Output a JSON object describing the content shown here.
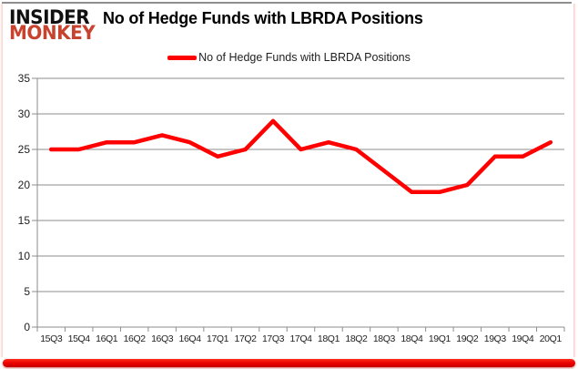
{
  "logo": {
    "line1": "INSIDER",
    "line2": "MONKEY"
  },
  "title": "No of Hedge Funds with LBRDA Positions",
  "legend": {
    "label": "No of Hedge Funds with LBRDA Positions",
    "color": "#ff0000"
  },
  "colors": {
    "line": "#ff0000",
    "grid": "#8e8e8e",
    "text": "#1f1f1f",
    "logo_red": "#c8432e",
    "bottom_bar": "#e80000",
    "side_border": "#f6cfc9"
  },
  "chart_data": {
    "type": "line",
    "title": "No of Hedge Funds with LBRDA Positions",
    "categories": [
      "15Q3",
      "15Q4",
      "16Q1",
      "16Q2",
      "16Q3",
      "16Q4",
      "17Q1",
      "17Q2",
      "17Q3",
      "17Q4",
      "18Q1",
      "18Q2",
      "18Q3",
      "18Q4",
      "19Q1",
      "19Q2",
      "19Q3",
      "19Q4",
      "20Q1"
    ],
    "series": [
      {
        "name": "No of Hedge Funds with LBRDA Positions",
        "color": "#ff0000",
        "values": [
          25,
          25,
          26,
          26,
          27,
          26,
          24,
          25,
          29,
          25,
          26,
          25,
          22,
          19,
          19,
          20,
          24,
          24,
          26
        ]
      }
    ],
    "xlabel": "",
    "ylabel": "",
    "ylim": [
      0,
      35
    ],
    "yticks": [
      0,
      5,
      10,
      15,
      20,
      25,
      30,
      35
    ],
    "grid": true,
    "legend_position": "top-center"
  }
}
